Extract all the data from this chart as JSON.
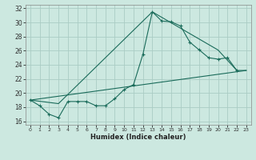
{
  "xlabel": "Humidex (Indice chaleur)",
  "bg_color": "#cce8e0",
  "line_color": "#1a6b5a",
  "grid_color": "#aaccc4",
  "xlim": [
    -0.5,
    23.5
  ],
  "ylim": [
    15.5,
    32.5
  ],
  "xticks": [
    0,
    1,
    2,
    3,
    4,
    5,
    6,
    7,
    8,
    9,
    10,
    11,
    12,
    13,
    14,
    15,
    16,
    17,
    18,
    19,
    20,
    21,
    22,
    23
  ],
  "yticks": [
    16,
    18,
    20,
    22,
    24,
    26,
    28,
    30,
    32
  ],
  "line1_x": [
    0,
    1,
    2,
    3,
    4,
    5,
    6,
    7,
    8,
    9,
    10,
    11,
    12,
    13,
    14,
    15,
    16,
    17,
    18,
    19,
    20,
    21,
    22
  ],
  "line1_y": [
    19.0,
    18.2,
    17.0,
    16.5,
    18.8,
    18.8,
    18.8,
    18.2,
    18.2,
    19.2,
    20.5,
    21.2,
    25.5,
    31.5,
    30.2,
    30.1,
    29.5,
    27.2,
    26.1,
    25.0,
    24.8,
    25.0,
    23.2
  ],
  "line2_x": [
    0,
    23
  ],
  "line2_y": [
    19.0,
    23.2
  ],
  "line3_x": [
    0,
    3,
    13,
    20,
    22,
    23
  ],
  "line3_y": [
    19.0,
    18.5,
    31.5,
    26.1,
    23.2,
    23.2
  ]
}
